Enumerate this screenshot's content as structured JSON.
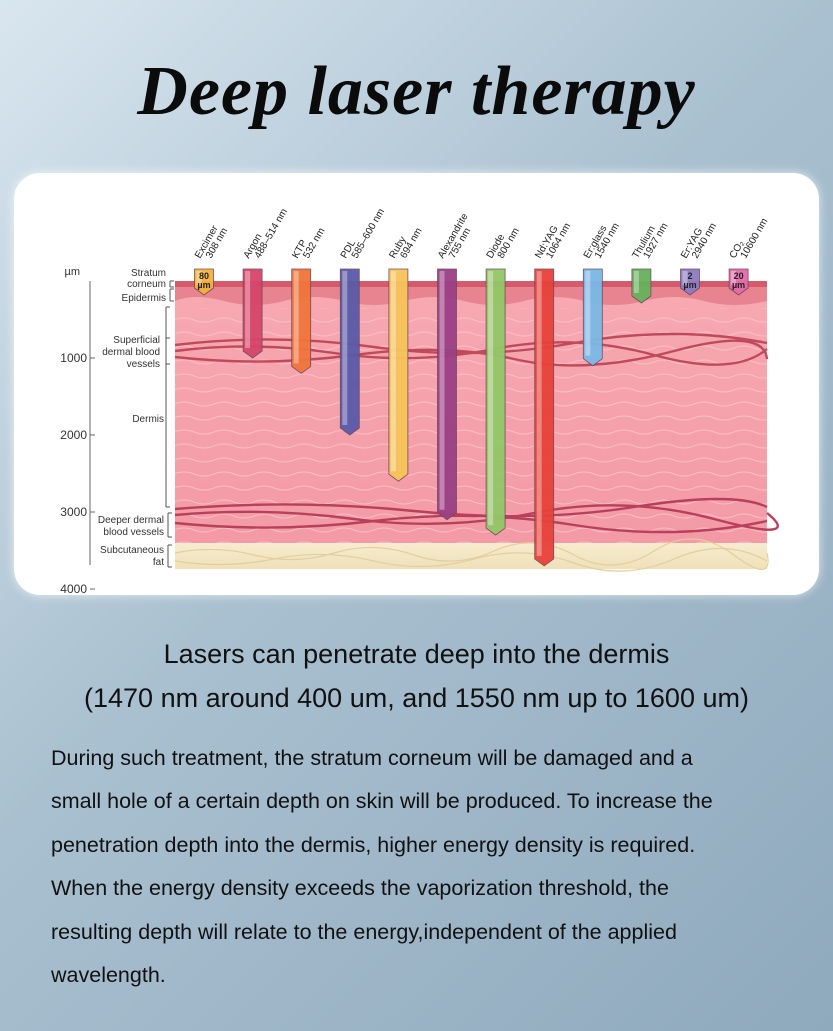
{
  "title": "Deep laser therapy",
  "diagram": {
    "unit_label": "µm",
    "depth_ticks": [
      "1000",
      "2000",
      "3000",
      "4000"
    ],
    "layers": {
      "stratum_corneum": "Stratum corneum",
      "epidermis": "Epidermis",
      "superficial_vessels": "Superficial dermal blood vessels",
      "dermis": "Dermis",
      "deeper_vessels": "Deeper dermal blood vessels",
      "fat": "Subcutaneous fat"
    },
    "lasers": [
      {
        "name": "Excimer",
        "wavelength": "308 nm",
        "depth_um": 80,
        "label": "80 µm",
        "color": "#f4b23a"
      },
      {
        "name": "Argon",
        "wavelength": "488–514 nm",
        "depth_um": 1000,
        "color": "#d6456a"
      },
      {
        "name": "KTP",
        "wavelength": "532 nm",
        "depth_um": 1200,
        "color": "#f0753a"
      },
      {
        "name": "PDL",
        "wavelength": "585–600 nm",
        "depth_um": 2000,
        "color": "#5a5aa8"
      },
      {
        "name": "Ruby",
        "wavelength": "694 nm",
        "depth_um": 2600,
        "color": "#f7c45a"
      },
      {
        "name": "Alexandrite",
        "wavelength": "755 nm",
        "depth_um": 3100,
        "color": "#9b3f86"
      },
      {
        "name": "Diode",
        "wavelength": "800 nm",
        "depth_um": 3300,
        "color": "#93c768"
      },
      {
        "name": "Nd:YAG",
        "wavelength": "1064 nm",
        "depth_um": 3700,
        "color": "#e8413a"
      },
      {
        "name": "Er:glass",
        "wavelength": "1540 nm",
        "depth_um": 1100,
        "color": "#7ab8e6"
      },
      {
        "name": "Thulium",
        "wavelength": "1927 nm",
        "depth_um": 200,
        "color": "#66b25c"
      },
      {
        "name": "Er:YAG",
        "wavelength": "2940 nm",
        "depth_um": 2,
        "label": "2 µm",
        "color": "#8d7cc2"
      },
      {
        "name": "CO₂",
        "wavelength": "10600 nm",
        "depth_um": 20,
        "label": "20 µm",
        "color": "#e46aa7"
      }
    ]
  },
  "headline_line1": "Lasers can penetrate deep into the dermis",
  "headline_line2": "(1470 nm around 400 um, and 1550 nm up to 1600 um)",
  "body_lines": [
    "During such treatment, the stratum corneum will be damaged and a",
    "small hole of a certain depth on skin will be produced. To increase the",
    "penetration depth into the dermis, higher energy density is required.",
    "When the energy density exceeds the vaporization threshold, the",
    "resulting depth will relate to the energy,independent of the applied",
    "wavelength."
  ]
}
